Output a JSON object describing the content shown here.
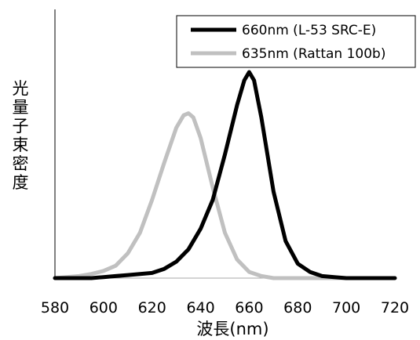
{
  "chart_data": {
    "type": "line",
    "title": "",
    "xlabel": "波長(nm)",
    "ylabel": "光量子束密度",
    "xlim": [
      580,
      720
    ],
    "ylim": [
      0,
      1
    ],
    "x_ticks": [
      "580",
      "600",
      "620",
      "640",
      "660",
      "680",
      "700",
      "720"
    ],
    "grid": false,
    "legend_position": "top-right",
    "series": [
      {
        "name": "660nm (L-53 SRC-E)",
        "color": "#000000",
        "x": [
          580,
          590,
          595,
          600,
          605,
          610,
          615,
          620,
          625,
          630,
          635,
          640,
          645,
          650,
          655,
          658,
          660,
          662,
          665,
          670,
          675,
          680,
          685,
          690,
          695,
          700,
          710,
          720
        ],
        "y": [
          0.0,
          0.0,
          0.0,
          0.005,
          0.01,
          0.015,
          0.02,
          0.025,
          0.045,
          0.08,
          0.14,
          0.24,
          0.38,
          0.6,
          0.84,
          0.96,
          1.0,
          0.96,
          0.78,
          0.42,
          0.18,
          0.07,
          0.03,
          0.01,
          0.005,
          0.0,
          0.0,
          0.0
        ]
      },
      {
        "name": "635nm (Rattan 100b)",
        "color": "#c0c0c0",
        "x": [
          580,
          590,
          595,
          600,
          605,
          610,
          615,
          620,
          625,
          630,
          633,
          635,
          637,
          640,
          645,
          650,
          655,
          660,
          665,
          670,
          680,
          690,
          700,
          710,
          720
        ],
        "y": [
          0.0,
          0.01,
          0.02,
          0.035,
          0.06,
          0.12,
          0.22,
          0.38,
          0.56,
          0.73,
          0.79,
          0.8,
          0.78,
          0.68,
          0.44,
          0.22,
          0.09,
          0.03,
          0.01,
          0.0,
          0.0,
          0.0,
          0.0,
          0.0,
          0.0
        ]
      }
    ]
  }
}
